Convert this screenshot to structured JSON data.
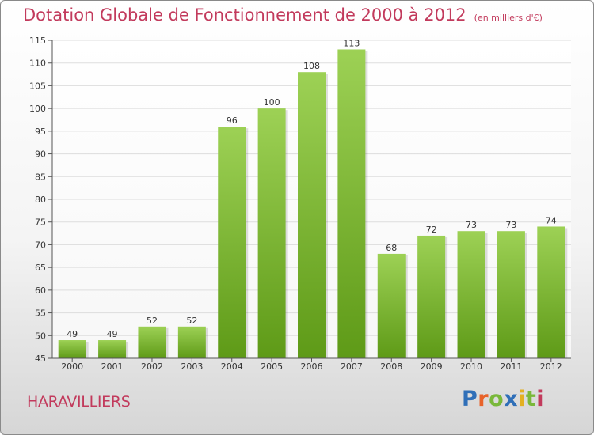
{
  "title": "Dotation Globale de Fonctionnement de 2000 à 2012",
  "units": "(en milliers d'€)",
  "commune": "HARAVILLIERS",
  "logo": [
    "P",
    "r",
    "o",
    "x",
    "i",
    "t",
    "i"
  ],
  "colors": {
    "title": "#c23a5c",
    "bar_top": "#9dd155",
    "bar_bottom": "#5e9a17",
    "grid": "#dddddd"
  },
  "chart_data": {
    "type": "bar",
    "title": "Dotation Globale de Fonctionnement de 2000 à 2012",
    "subtitle": "(en milliers d'€)",
    "xlabel": "",
    "ylabel": "",
    "categories": [
      "2000",
      "2001",
      "2002",
      "2003",
      "2004",
      "2005",
      "2006",
      "2007",
      "2008",
      "2009",
      "2010",
      "2011",
      "2012"
    ],
    "values": [
      49,
      49,
      52,
      52,
      96,
      100,
      108,
      113,
      68,
      72,
      73,
      73,
      74
    ],
    "ylim": [
      45,
      115
    ],
    "yticks": [
      45,
      50,
      55,
      60,
      65,
      70,
      75,
      80,
      85,
      90,
      95,
      100,
      105,
      110,
      115
    ],
    "grid": true,
    "legend": "none"
  }
}
